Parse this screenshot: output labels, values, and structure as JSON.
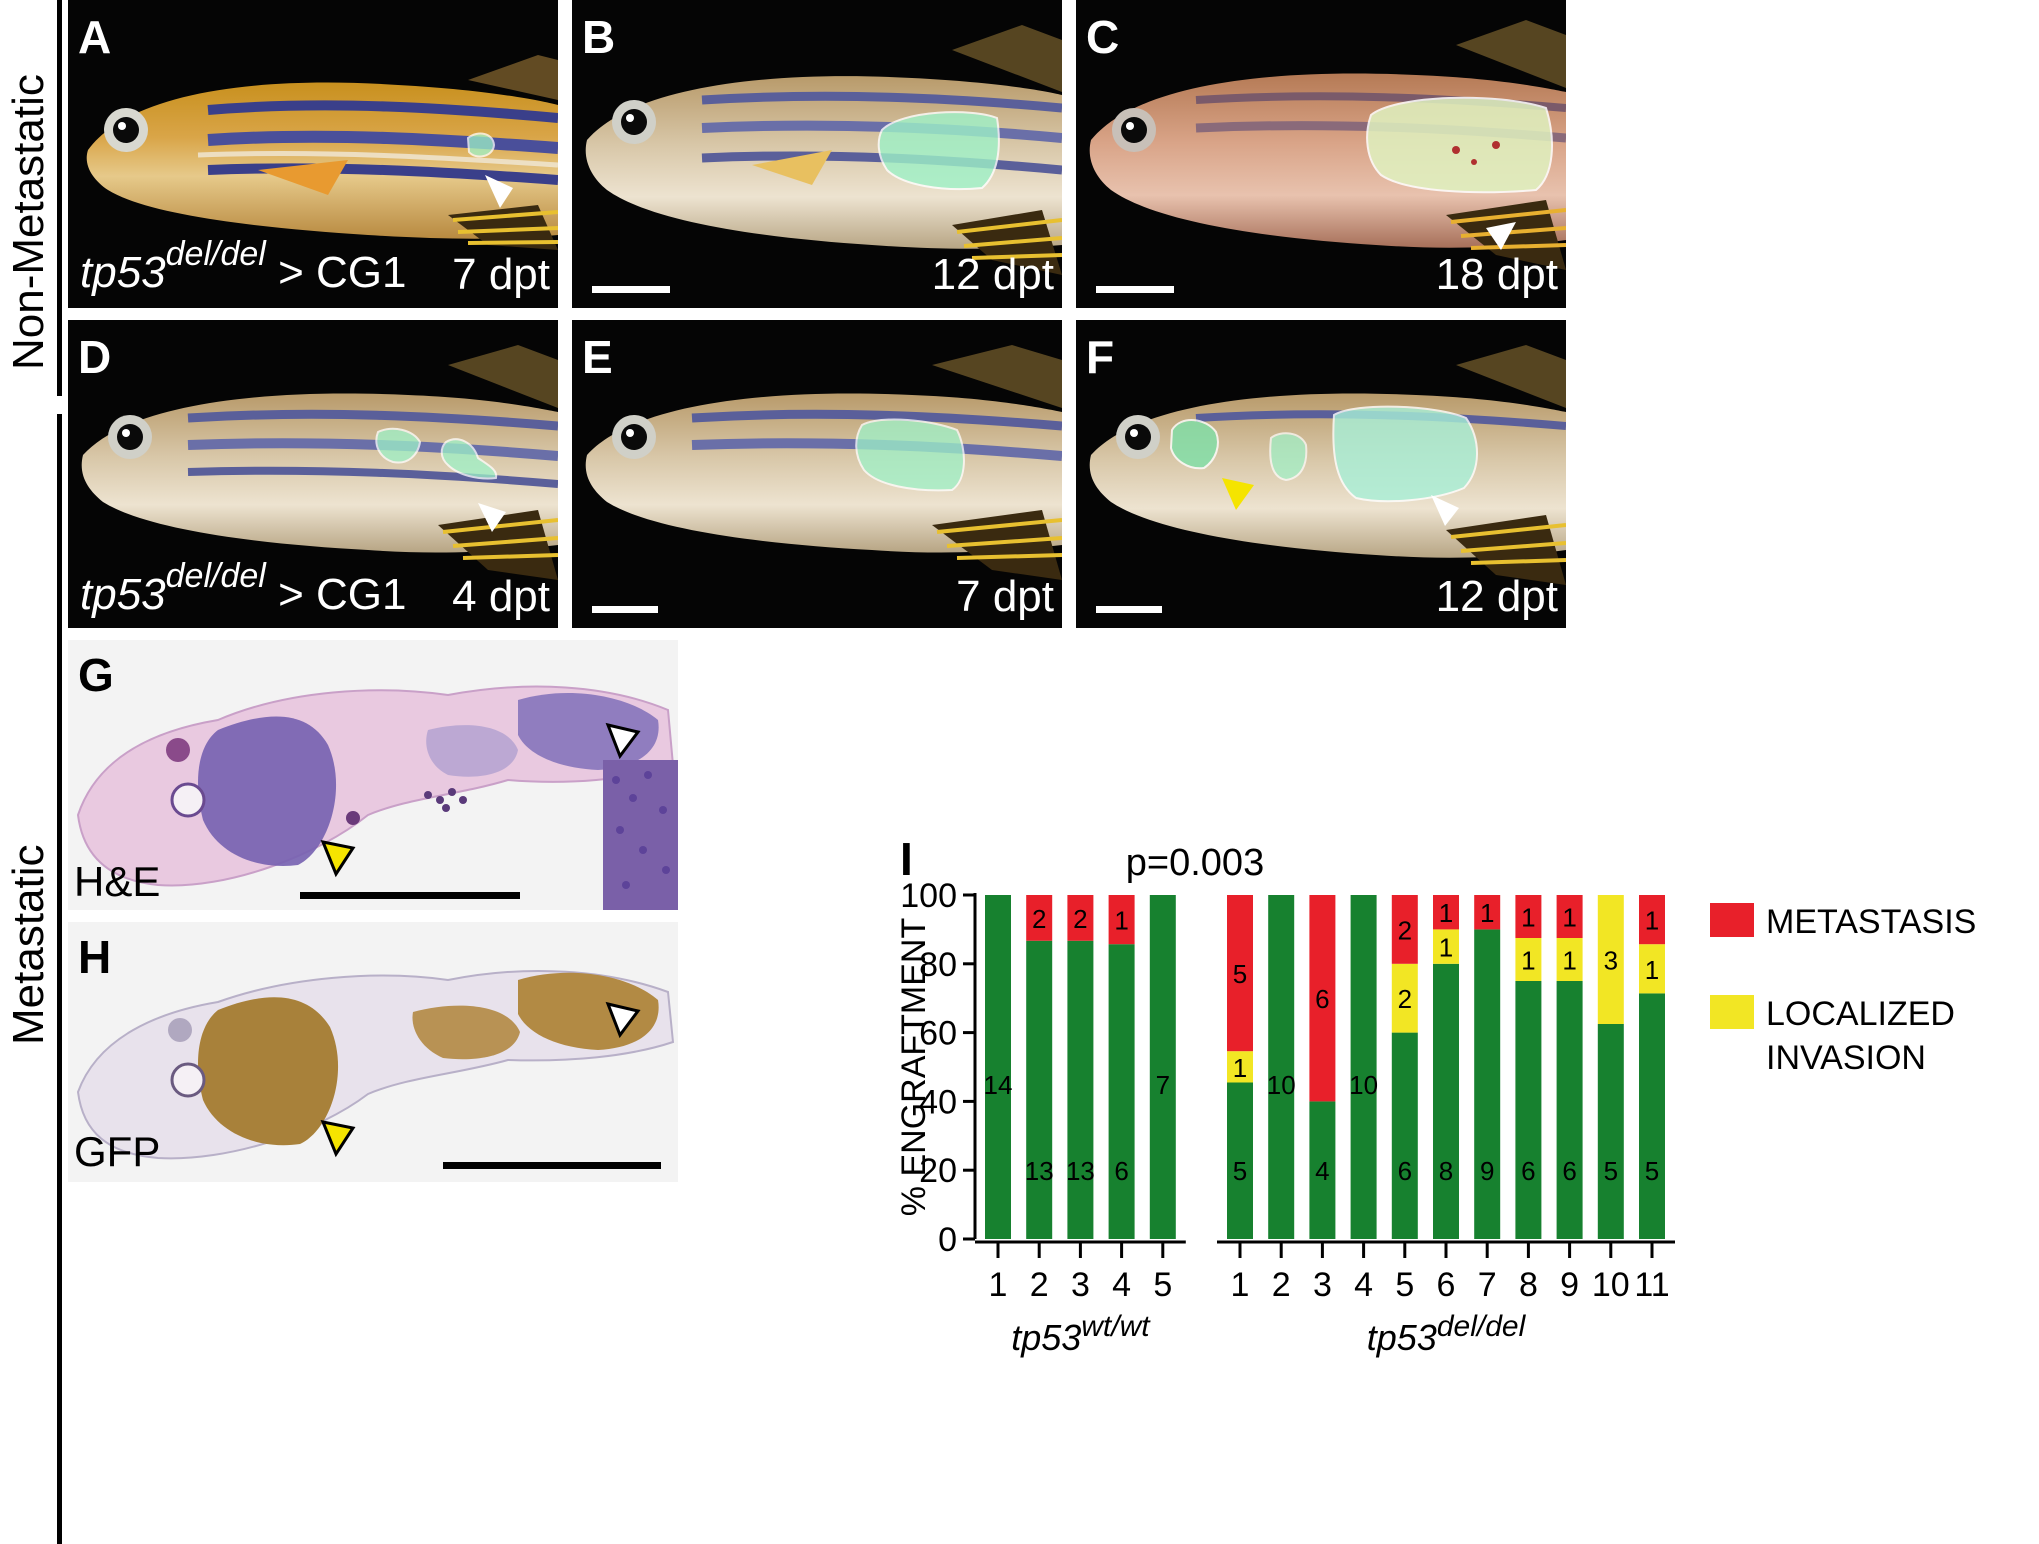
{
  "row_labels": {
    "non_metastatic": "Non-Metastatic",
    "metastatic": "Metastatic"
  },
  "panels": {
    "A": {
      "label": "A",
      "genotype_base": "tp53",
      "genotype_sup": "del/del",
      "genotype_suffix": " > CG1",
      "time": "7 dpt"
    },
    "B": {
      "label": "B",
      "time": "12 dpt"
    },
    "C": {
      "label": "C",
      "time": "18 dpt"
    },
    "D": {
      "label": "D",
      "genotype_base": "tp53",
      "genotype_sup": "del/del",
      "genotype_suffix": " > CG1",
      "time": "4 dpt"
    },
    "E": {
      "label": "E",
      "time": "7 dpt"
    },
    "F": {
      "label": "F",
      "time": "12 dpt"
    },
    "G": {
      "label": "G",
      "stain": "H&E"
    },
    "H": {
      "label": "H",
      "stain": "GFP"
    }
  },
  "colors": {
    "metastasis": "#e8202a",
    "localized": "#f2e624",
    "engraftment": "#17812f",
    "gfp_tumor": "#9ef2c8",
    "arrow_white": "#ffffff",
    "arrow_yellow": "#f5e400"
  },
  "chart_data": {
    "type": "bar",
    "stacked": true,
    "panel_label": "I",
    "title": "p=0.003",
    "ylabel": "% ENGRAFTMENT",
    "ylim": [
      0,
      100
    ],
    "yticks": [
      "0",
      "20",
      "40",
      "60",
      "80",
      "100"
    ],
    "legend": [
      {
        "label": "METASTASIS",
        "color": "#e8202a"
      },
      {
        "label": "LOCALIZED",
        "label2": "INVASION",
        "color": "#f2e624"
      }
    ],
    "legend_position": "right",
    "groups": [
      {
        "base": "tp53",
        "sup": "wt/wt",
        "categories": [
          "1",
          "2",
          "3",
          "4",
          "5"
        ],
        "engraftment": [
          100,
          86.7,
          86.7,
          85.7,
          100
        ],
        "localized": [
          0,
          0,
          0,
          0,
          0
        ],
        "metastasis": [
          0,
          13.3,
          13.3,
          14.3,
          0
        ],
        "engraftment_counts": [
          "14",
          "13",
          "13",
          "6",
          "7"
        ],
        "localized_counts": [
          "",
          "",
          "",
          "",
          ""
        ],
        "metastasis_counts": [
          "",
          "2",
          "2",
          "1",
          ""
        ]
      },
      {
        "base": "tp53",
        "sup": "del/del",
        "categories": [
          "1",
          "2",
          "3",
          "4",
          "5",
          "6",
          "7",
          "8",
          "9",
          "10",
          "11"
        ],
        "engraftment": [
          45.5,
          100,
          40,
          100,
          60,
          80,
          90,
          75,
          75,
          62.5,
          71.4
        ],
        "localized": [
          9.1,
          0,
          0,
          0,
          20,
          10,
          0,
          12.5,
          12.5,
          37.5,
          14.3
        ],
        "metastasis": [
          45.4,
          0,
          60,
          0,
          20,
          10,
          10,
          12.5,
          12.5,
          0,
          14.3
        ],
        "engraftment_counts": [
          "5",
          "10",
          "4",
          "10",
          "6",
          "8",
          "9",
          "6",
          "6",
          "5",
          "5"
        ],
        "localized_counts": [
          "1",
          "",
          "",
          "",
          "2",
          "1",
          "",
          "1",
          "1",
          "3",
          "1"
        ],
        "metastasis_counts": [
          "5",
          "",
          "6",
          "",
          "2",
          "1",
          "1",
          "1",
          "1",
          "",
          "1"
        ]
      }
    ]
  }
}
